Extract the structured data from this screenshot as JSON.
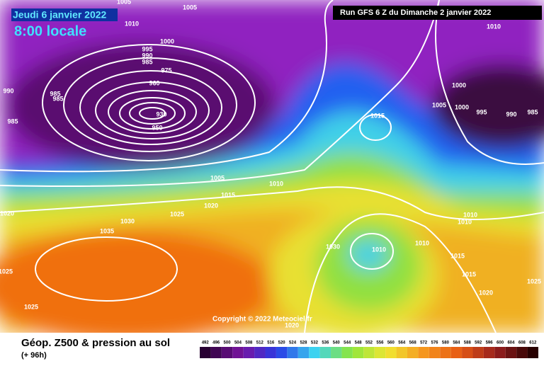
{
  "header": {
    "date": "Jeudi 6 janvier 2022",
    "time": "8:00 locale",
    "run": "Run GFS 6 Z du Dimanche 2 janvier 2022"
  },
  "copyright": "Copyright © 2022 Meteociel.fr",
  "footer": {
    "title": "Géop. Z500 & pression au sol",
    "lead": "(+ 96h)"
  },
  "isobar_labels": [
    "1005",
    "1005",
    "1010",
    "1000",
    "995",
    "990",
    "985",
    "975",
    "960",
    "990",
    "985",
    "985",
    "930",
    "950",
    "985",
    "1005",
    "1010",
    "1015",
    "1020",
    "1025",
    "1020",
    "1030",
    "1035",
    "1030",
    "1010",
    "1010",
    "1025",
    "1025",
    "1015",
    "1010",
    "1000",
    "1005",
    "1000",
    "995",
    "990",
    "985",
    "1010",
    "1010",
    "1015",
    "1015",
    "1020",
    "1025",
    "1020"
  ],
  "scale": {
    "labels": [
      492,
      496,
      500,
      504,
      508,
      512,
      516,
      520,
      524,
      528,
      532,
      536,
      540,
      544,
      548,
      552,
      556,
      560,
      564,
      568,
      572,
      576,
      580,
      584,
      588,
      592,
      596,
      600,
      604,
      608,
      612
    ]
  }
}
